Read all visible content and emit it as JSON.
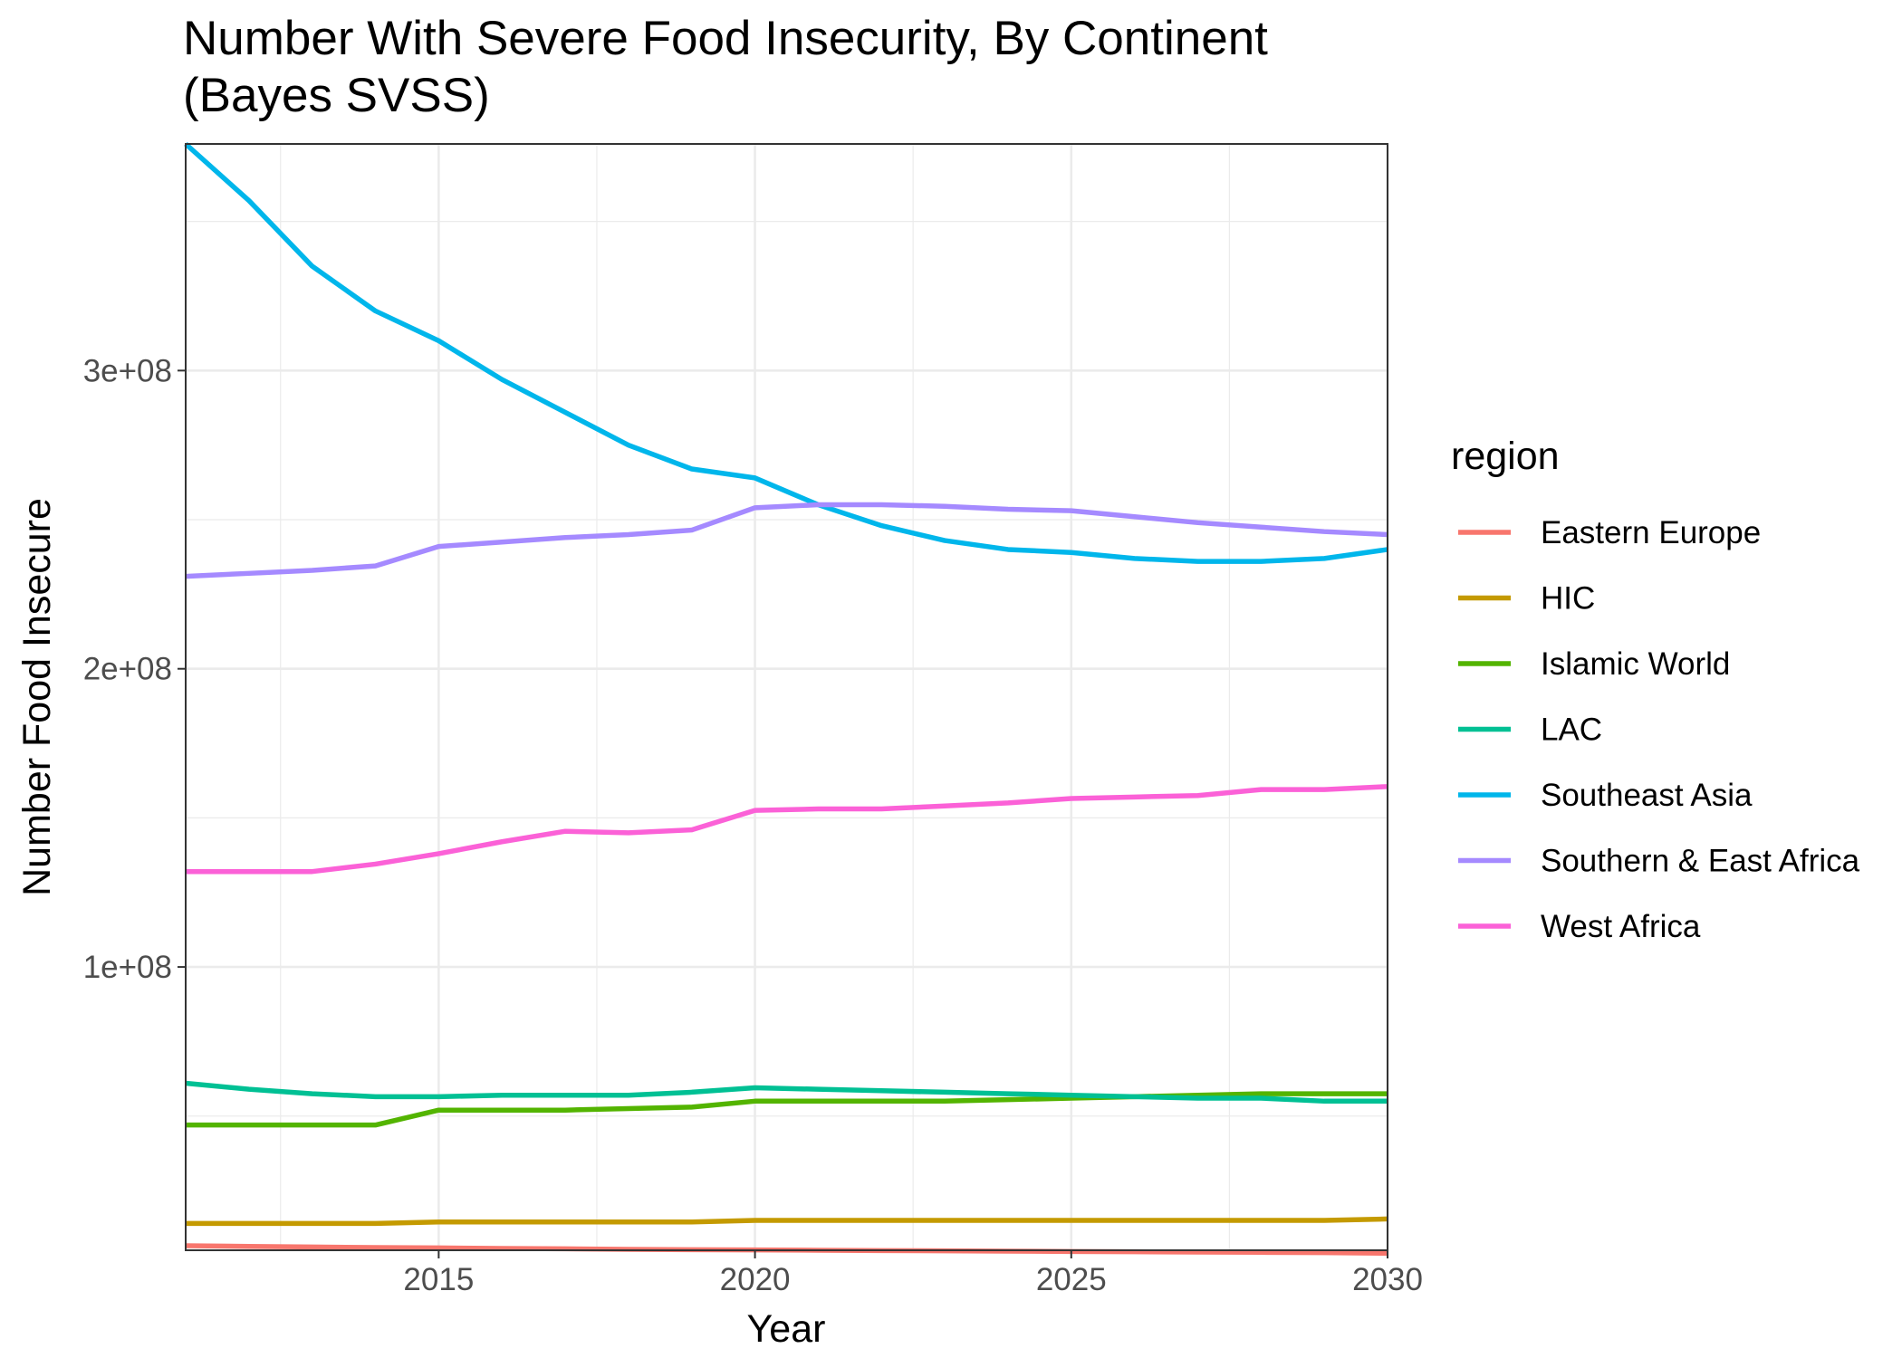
{
  "chart_data": {
    "type": "line",
    "title_line1": "Number With Severe Food Insecurity, By Continent",
    "title_line2": "(Bayes SVSS)",
    "xlabel": "Year",
    "ylabel": "Number Food Insecure",
    "xlim": [
      2011,
      2030
    ],
    "ylim": [
      5000000,
      376000000
    ],
    "x_ticks": [
      {
        "value": 2015,
        "label": "2015"
      },
      {
        "value": 2020,
        "label": "2020"
      },
      {
        "value": 2025,
        "label": "2025"
      },
      {
        "value": 2030,
        "label": "2030"
      }
    ],
    "y_ticks": [
      {
        "value": 100000000,
        "label": "1e+08"
      },
      {
        "value": 200000000,
        "label": "2e+08"
      },
      {
        "value": 300000000,
        "label": "3e+08"
      }
    ],
    "x_minor": [
      2012.5,
      2017.5,
      2022.5,
      2027.5
    ],
    "y_minor": [
      50000000,
      150000000,
      250000000,
      350000000
    ],
    "grid": true,
    "legend": {
      "title": "region",
      "placement": "right"
    },
    "x": [
      2011,
      2012,
      2013,
      2014,
      2015,
      2016,
      2017,
      2018,
      2019,
      2020,
      2021,
      2022,
      2023,
      2024,
      2025,
      2026,
      2027,
      2028,
      2029,
      2030
    ],
    "series": [
      {
        "name": "Eastern Europe",
        "color": "#F8766D",
        "values": [
          6500000,
          6300000,
          6100000,
          5900000,
          5800000,
          5600000,
          5500000,
          5300000,
          5200000,
          5100000,
          5000000,
          4900000,
          4800000,
          4700000,
          4600000,
          4500000,
          4400000,
          4300000,
          4200000,
          4000000
        ]
      },
      {
        "name": "HIC",
        "color": "#C49A00",
        "values": [
          14000000,
          14000000,
          14000000,
          14000000,
          14500000,
          14500000,
          14500000,
          14500000,
          14500000,
          15000000,
          15000000,
          15000000,
          15000000,
          15000000,
          15000000,
          15000000,
          15000000,
          15000000,
          15000000,
          15500000
        ]
      },
      {
        "name": "Islamic World",
        "color": "#53B400",
        "values": [
          47000000,
          47000000,
          47000000,
          47000000,
          52000000,
          52000000,
          52000000,
          52500000,
          53000000,
          55000000,
          55000000,
          55000000,
          55000000,
          55500000,
          56000000,
          56500000,
          57000000,
          57500000,
          57500000,
          57500000
        ]
      },
      {
        "name": "LAC",
        "color": "#00C094",
        "values": [
          61000000,
          59000000,
          57500000,
          56500000,
          56500000,
          57000000,
          57000000,
          57000000,
          58000000,
          59500000,
          59000000,
          58500000,
          58000000,
          57500000,
          57000000,
          56500000,
          56000000,
          56000000,
          55000000,
          55000000
        ]
      },
      {
        "name": "Southeast Asia",
        "color": "#00B6EB",
        "values": [
          376000000,
          357000000,
          335000000,
          320000000,
          310000000,
          297000000,
          286000000,
          275000000,
          267000000,
          264000000,
          255000000,
          248000000,
          243000000,
          240000000,
          239000000,
          237000000,
          236000000,
          236000000,
          237000000,
          240000000
        ]
      },
      {
        "name": "Southern & East Africa",
        "color": "#A58AFF",
        "values": [
          231000000,
          232000000,
          233000000,
          234500000,
          241000000,
          242500000,
          244000000,
          245000000,
          246500000,
          254000000,
          255000000,
          255000000,
          254500000,
          253500000,
          253000000,
          251000000,
          249000000,
          247500000,
          246000000,
          245000000
        ]
      },
      {
        "name": "West Africa",
        "color": "#FB61D7",
        "values": [
          132000000,
          132000000,
          132000000,
          134500000,
          138000000,
          142000000,
          145500000,
          145000000,
          146000000,
          152500000,
          153000000,
          153000000,
          154000000,
          155000000,
          156500000,
          157000000,
          157500000,
          159500000,
          159500000,
          160500000
        ]
      }
    ]
  }
}
